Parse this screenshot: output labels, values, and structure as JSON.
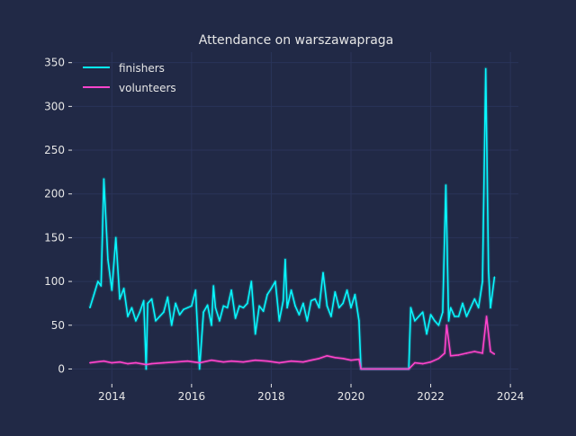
{
  "chart_data": {
    "type": "line",
    "title": "Attendance on warszawapraga",
    "xlabel": "",
    "ylabel": "",
    "x_tick_labels": [
      "2014",
      "2016",
      "2018",
      "2020",
      "2022",
      "2024"
    ],
    "y_tick_labels": [
      "0",
      "50",
      "100",
      "150",
      "200",
      "250",
      "300",
      "350"
    ],
    "x_ticks": [
      2014,
      2016,
      2018,
      2020,
      2022,
      2024
    ],
    "y_ticks": [
      0,
      50,
      100,
      150,
      200,
      250,
      300,
      350
    ],
    "xlim": [
      2013.0,
      2024.2
    ],
    "ylim": [
      -17,
      362
    ],
    "grid": true,
    "legend_position": "top-left",
    "colors": {
      "background": "#212946",
      "grid": "#2a3459",
      "text": "#e6e6e6"
    },
    "series": [
      {
        "name": "finishers",
        "color": "#08F7FE",
        "x": [
          2013.45,
          2013.55,
          2013.65,
          2013.73,
          2013.8,
          2013.9,
          2014.0,
          2014.1,
          2014.2,
          2014.3,
          2014.4,
          2014.5,
          2014.6,
          2014.7,
          2014.8,
          2014.86,
          2014.9,
          2015.0,
          2015.1,
          2015.2,
          2015.3,
          2015.4,
          2015.5,
          2015.6,
          2015.7,
          2015.8,
          2015.9,
          2016.0,
          2016.1,
          2016.2,
          2016.3,
          2016.4,
          2016.5,
          2016.55,
          2016.6,
          2016.7,
          2016.8,
          2016.9,
          2017.0,
          2017.1,
          2017.2,
          2017.3,
          2017.4,
          2017.5,
          2017.6,
          2017.7,
          2017.8,
          2017.9,
          2018.0,
          2018.1,
          2018.2,
          2018.3,
          2018.35,
          2018.4,
          2018.5,
          2018.6,
          2018.7,
          2018.8,
          2018.9,
          2019.0,
          2019.1,
          2019.2,
          2019.3,
          2019.4,
          2019.5,
          2019.6,
          2019.7,
          2019.8,
          2019.9,
          2020.0,
          2020.1,
          2020.2,
          2020.25,
          2021.45,
          2021.5,
          2021.6,
          2021.7,
          2021.8,
          2021.9,
          2022.0,
          2022.1,
          2022.2,
          2022.3,
          2022.38,
          2022.45,
          2022.5,
          2022.6,
          2022.7,
          2022.8,
          2022.9,
          2023.0,
          2023.1,
          2023.2,
          2023.3,
          2023.38,
          2023.45,
          2023.5,
          2023.6
        ],
        "y": [
          70,
          85,
          100,
          95,
          217,
          125,
          90,
          150,
          80,
          92,
          60,
          70,
          55,
          65,
          78,
          0,
          75,
          80,
          55,
          60,
          65,
          82,
          50,
          75,
          62,
          68,
          70,
          72,
          90,
          0,
          65,
          73,
          50,
          95,
          70,
          55,
          72,
          70,
          90,
          58,
          72,
          70,
          75,
          100,
          40,
          72,
          66,
          85,
          92,
          100,
          55,
          78,
          125,
          70,
          90,
          72,
          62,
          75,
          55,
          78,
          80,
          70,
          110,
          72,
          60,
          88,
          70,
          75,
          90,
          70,
          85,
          55,
          0,
          0,
          70,
          55,
          60,
          65,
          40,
          62,
          55,
          50,
          65,
          210,
          55,
          70,
          60,
          60,
          75,
          60,
          70,
          80,
          70,
          100,
          343,
          112,
          70,
          105
        ]
      },
      {
        "name": "volunteers",
        "color": "#FF44CC",
        "x": [
          2013.45,
          2013.6,
          2013.8,
          2014.0,
          2014.2,
          2014.4,
          2014.6,
          2014.86,
          2015.0,
          2015.3,
          2015.6,
          2015.9,
          2016.2,
          2016.5,
          2016.8,
          2017.0,
          2017.3,
          2017.6,
          2017.9,
          2018.2,
          2018.5,
          2018.8,
          2019.0,
          2019.2,
          2019.4,
          2019.6,
          2019.8,
          2020.0,
          2020.2,
          2020.25,
          2021.45,
          2021.6,
          2021.8,
          2022.0,
          2022.2,
          2022.35,
          2022.4,
          2022.5,
          2022.7,
          2022.9,
          2023.1,
          2023.3,
          2023.4,
          2023.5,
          2023.6
        ],
        "y": [
          7,
          8,
          9,
          7,
          8,
          6,
          7,
          5,
          6,
          7,
          8,
          9,
          7,
          10,
          8,
          9,
          8,
          10,
          9,
          7,
          9,
          8,
          10,
          12,
          15,
          13,
          12,
          10,
          11,
          0,
          0,
          7,
          6,
          8,
          12,
          18,
          50,
          15,
          16,
          18,
          20,
          18,
          60,
          20,
          17
        ]
      }
    ]
  }
}
